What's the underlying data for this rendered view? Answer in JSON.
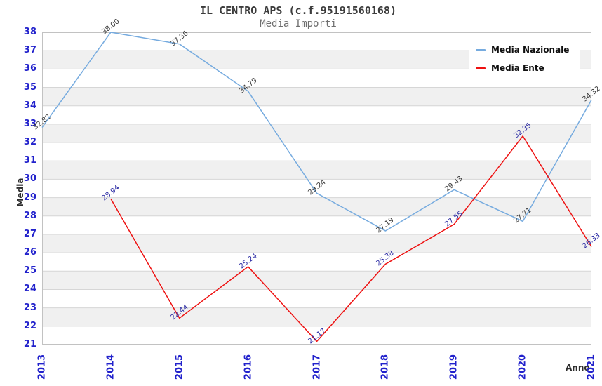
{
  "chart_data": {
    "type": "line",
    "title": "IL CENTRO APS (c.f.95191560168)",
    "subtitle": "Media Importi",
    "xlabel": "Anno",
    "ylabel": "Media",
    "categories": [
      "2013",
      "2014",
      "2015",
      "2016",
      "2017",
      "2018",
      "2019",
      "2020",
      "2021"
    ],
    "ylim": [
      21,
      38
    ],
    "ytick_step": 1,
    "grid": "horizontal-bands-alternating",
    "legend_position": "top-right",
    "series": [
      {
        "name": "Media Nazionale",
        "color": "#76abdf",
        "label_color": "#3a3a3a",
        "values": [
          32.82,
          38.0,
          37.36,
          34.79,
          29.24,
          27.19,
          29.43,
          27.71,
          34.32
        ]
      },
      {
        "name": "Media Ente",
        "color": "#ee1111",
        "label_color": "#2929a3",
        "values": [
          null,
          28.94,
          22.44,
          25.24,
          21.17,
          25.38,
          27.55,
          32.35,
          26.33
        ]
      }
    ],
    "colors": {
      "tick_label": "#2222cc",
      "band_fill": "#f0f0f0",
      "grid_line": "#d6d6d6",
      "plot_border": "#c2c2c2",
      "title_text": "#3c3c3c",
      "subtitle_text": "#6e6e6e",
      "axis_title_text": "#2e2e2e",
      "legend_text": "#101010",
      "background": "#ffffff"
    }
  }
}
